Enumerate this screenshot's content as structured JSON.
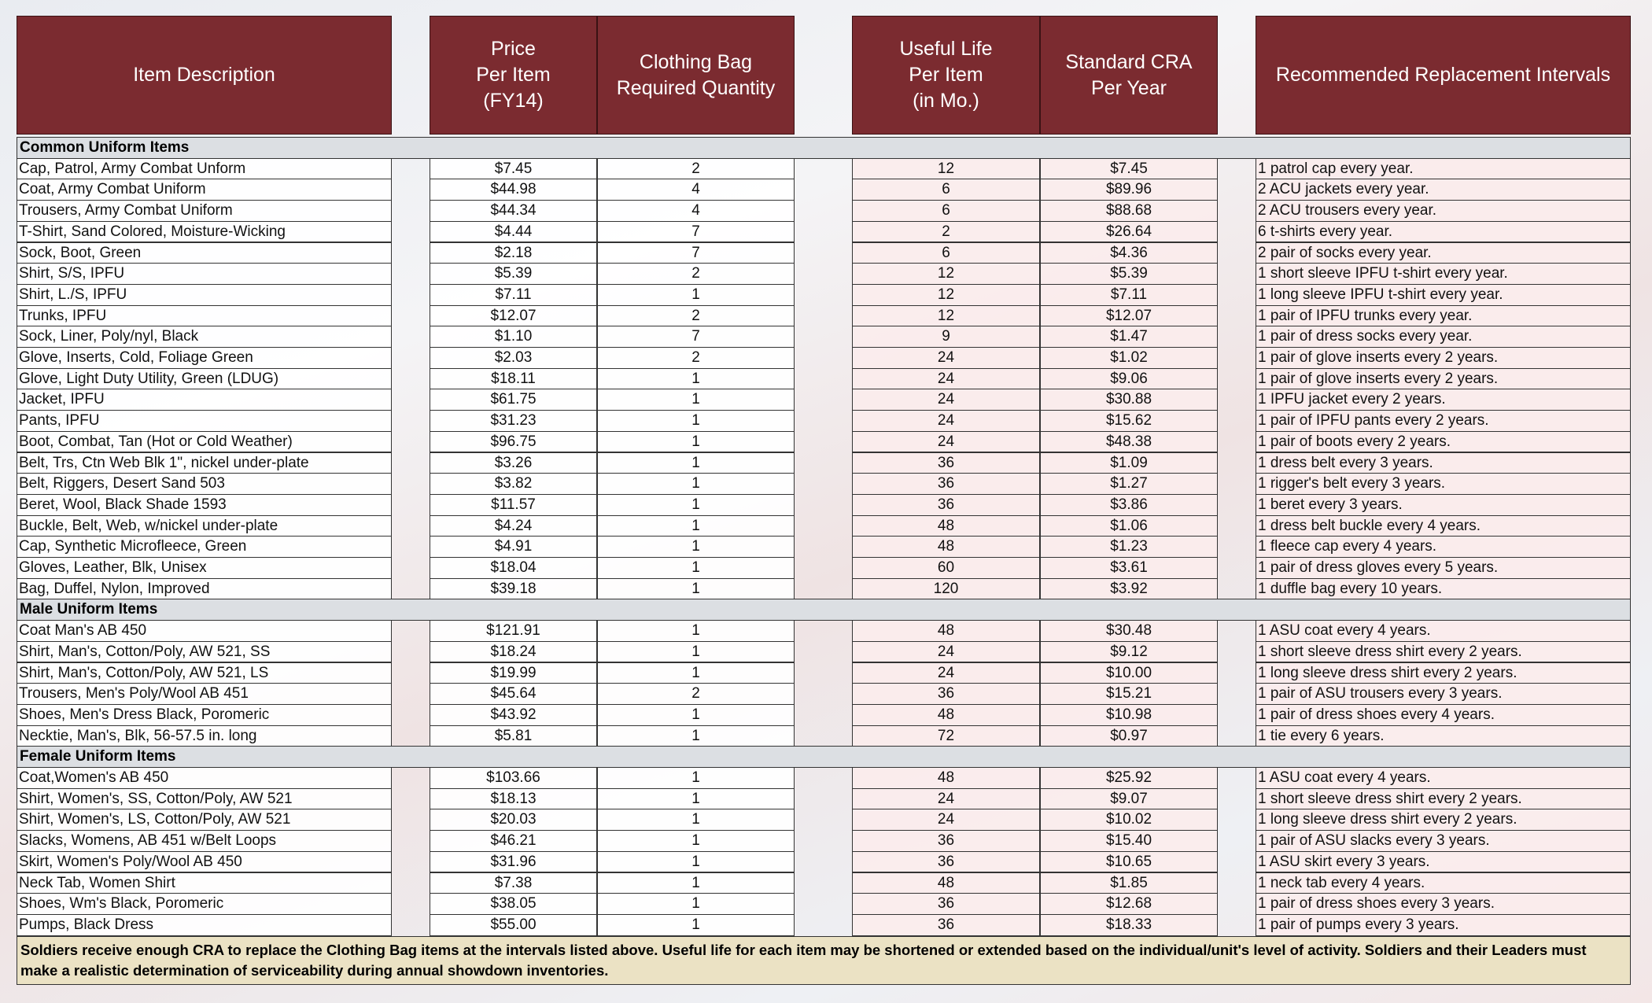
{
  "header": {
    "columns": [
      "Item Description",
      "Price\nPer Item\n(FY14)",
      "Clothing Bag\nRequired Quantity",
      "Useful Life\nPer Item\n(in Mo.)",
      "Standard CRA\nPer Year",
      "Recommended Replacement Intervals"
    ]
  },
  "sections": [
    {
      "title": "Common Uniform Items",
      "rows": [
        [
          "Cap, Patrol, Army Combat Unform",
          "$7.45",
          2,
          12,
          "$7.45",
          "1 patrol cap every year."
        ],
        [
          "Coat, Army Combat Uniform",
          "$44.98",
          4,
          6,
          "$89.96",
          "2 ACU jackets every year."
        ],
        [
          "Trousers, Army Combat Uniform",
          "$44.34",
          4,
          6,
          "$88.68",
          "2 ACU trousers every year."
        ],
        [
          "T-Shirt, Sand Colored, Moisture-Wicking",
          "$4.44",
          7,
          2,
          "$26.64",
          "6 t-shirts every year."
        ],
        [
          "Sock, Boot, Green",
          "$2.18",
          7,
          6,
          "$4.36",
          "2 pair of socks every year."
        ],
        [
          "Shirt, S/S, IPFU",
          "$5.39",
          2,
          12,
          "$5.39",
          "1 short sleeve IPFU t-shirt every year."
        ],
        [
          "Shirt, L./S, IPFU",
          "$7.11",
          1,
          12,
          "$7.11",
          "1 long sleeve IPFU t-shirt every year."
        ],
        [
          "Trunks, IPFU",
          "$12.07",
          2,
          12,
          "$12.07",
          "1 pair of IPFU trunks every year."
        ],
        [
          "Sock, Liner, Poly/nyl, Black",
          "$1.10",
          7,
          9,
          "$1.47",
          "1 pair of dress socks every year."
        ],
        [
          "Glove, Inserts, Cold, Foliage Green",
          "$2.03",
          2,
          24,
          "$1.02",
          "1 pair of glove inserts every 2 years."
        ],
        [
          "Glove, Light Duty Utility, Green (LDUG)",
          "$18.11",
          1,
          24,
          "$9.06",
          "1 pair of glove inserts every 2 years."
        ],
        [
          "Jacket, IPFU",
          "$61.75",
          1,
          24,
          "$30.88",
          "1 IPFU jacket every 2 years."
        ],
        [
          "Pants, IPFU",
          "$31.23",
          1,
          24,
          "$15.62",
          "1 pair of IPFU pants every 2 years."
        ],
        [
          "Boot, Combat, Tan (Hot or Cold Weather)",
          "$96.75",
          1,
          24,
          "$48.38",
          "1 pair of boots every 2 years."
        ],
        [
          "Belt, Trs, Ctn Web Blk 1\", nickel under-plate",
          "$3.26",
          1,
          36,
          "$1.09",
          "1 dress belt every 3 years."
        ],
        [
          "Belt, Riggers, Desert Sand 503",
          "$3.82",
          1,
          36,
          "$1.27",
          "1 rigger's belt every 3 years."
        ],
        [
          "Beret, Wool, Black Shade 1593",
          "$11.57",
          1,
          36,
          "$3.86",
          "1 beret every 3 years."
        ],
        [
          "Buckle, Belt, Web, w/nickel under-plate",
          "$4.24",
          1,
          48,
          "$1.06",
          "1 dress belt buckle every 4 years."
        ],
        [
          "Cap, Synthetic Microfleece, Green",
          "$4.91",
          1,
          48,
          "$1.23",
          "1 fleece cap every 4 years."
        ],
        [
          "Gloves, Leather, Blk, Unisex",
          "$18.04",
          1,
          60,
          "$3.61",
          "1 pair of dress gloves every 5 years."
        ],
        [
          "Bag, Duffel, Nylon, Improved",
          "$39.18",
          1,
          120,
          "$3.92",
          "1 duffle bag every 10 years."
        ]
      ]
    },
    {
      "title": "Male Uniform Items",
      "rows": [
        [
          "Coat Man's AB 450",
          "$121.91",
          1,
          48,
          "$30.48",
          "1 ASU coat every 4 years."
        ],
        [
          "Shirt, Man's, Cotton/Poly, AW 521, SS",
          "$18.24",
          1,
          24,
          "$9.12",
          "1 short sleeve dress shirt every 2 years."
        ],
        [
          "Shirt, Man's, Cotton/Poly, AW 521, LS",
          "$19.99",
          1,
          24,
          "$10.00",
          "1 long sleeve dress shirt every 2 years."
        ],
        [
          "Trousers, Men's Poly/Wool AB 451",
          "$45.64",
          2,
          36,
          "$15.21",
          "1 pair of ASU trousers every 3 years."
        ],
        [
          "Shoes, Men's Dress Black, Poromeric",
          "$43.92",
          1,
          48,
          "$10.98",
          "1 pair of dress shoes every 4 years."
        ],
        [
          "Necktie, Man's, Blk, 56-57.5 in. long",
          "$5.81",
          1,
          72,
          "$0.97",
          "1 tie every 6 years."
        ]
      ]
    },
    {
      "title": "Female Uniform Items",
      "rows": [
        [
          "Coat,Women's AB 450",
          "$103.66",
          1,
          48,
          "$25.92",
          "1 ASU coat every 4 years."
        ],
        [
          "Shirt, Women's, SS, Cotton/Poly, AW 521",
          "$18.13",
          1,
          24,
          "$9.07",
          "1 short sleeve dress shirt every 2 years."
        ],
        [
          "Shirt, Women's, LS, Cotton/Poly, AW 521",
          "$20.03",
          1,
          24,
          "$10.02",
          "1 long sleeve dress shirt every 2 years."
        ],
        [
          "Slacks, Womens, AB 451 w/Belt Loops",
          "$46.21",
          1,
          36,
          "$15.40",
          "1 pair of ASU slacks every 3 years."
        ],
        [
          "Skirt, Women's Poly/Wool AB 450",
          "$31.96",
          1,
          36,
          "$10.65",
          "1 ASU skirt every 3 years."
        ],
        [
          "Neck Tab, Women Shirt",
          "$7.38",
          1,
          48,
          "$1.85",
          "1 neck tab every 4 years."
        ],
        [
          "Shoes, Wm's Black, Poromeric",
          "$38.05",
          1,
          36,
          "$12.68",
          "1 pair of dress shoes every 3 years."
        ],
        [
          "Pumps, Black Dress",
          "$55.00",
          1,
          36,
          "$18.33",
          "1 pair of pumps every 3 years."
        ]
      ]
    }
  ],
  "footer": {
    "note": "Soldiers receive enough CRA to replace the Clothing Bag items at the intervals listed above.  Useful life for each item may be shortened or extended based on the individual/unit's level of activity.  Soldiers and their Leaders must make a realistic determination of serviceability during annual showdown inventories."
  }
}
